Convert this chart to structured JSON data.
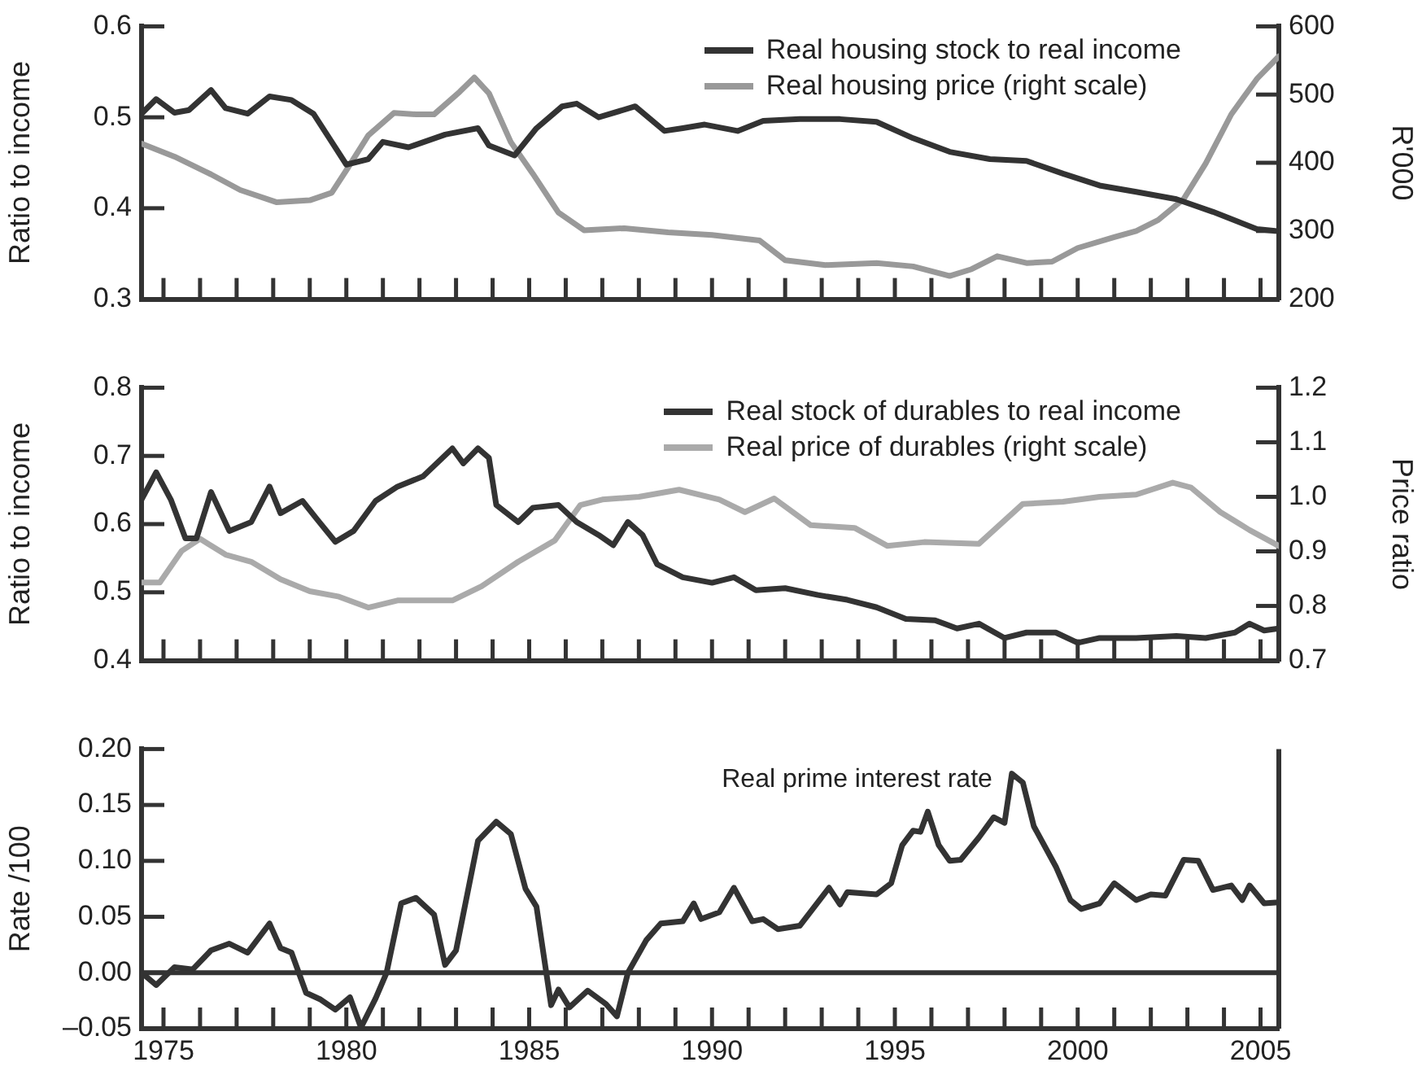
{
  "chart_data": [
    {
      "type": "line",
      "ylabel": "Ratio to income",
      "y2label": "R'000",
      "legend": "top right",
      "tick_labels": "y",
      "xlim": [
        1974.4,
        2005.5
      ],
      "xticks": [
        {
          "value": 1975,
          "label": null
        },
        {
          "value": 1976,
          "label": null
        },
        {
          "value": 1977,
          "label": null
        },
        {
          "value": 1978,
          "label": null
        },
        {
          "value": 1979,
          "label": null
        },
        {
          "value": 1980,
          "label": null
        },
        {
          "value": 1981,
          "label": null
        },
        {
          "value": 1982,
          "label": null
        },
        {
          "value": 1983,
          "label": null
        },
        {
          "value": 1984,
          "label": null
        },
        {
          "value": 1985,
          "label": null
        },
        {
          "value": 1986,
          "label": null
        },
        {
          "value": 1987,
          "label": null
        },
        {
          "value": 1988,
          "label": null
        },
        {
          "value": 1989,
          "label": null
        },
        {
          "value": 1990,
          "label": null
        },
        {
          "value": 1991,
          "label": null
        },
        {
          "value": 1992,
          "label": null
        },
        {
          "value": 1993,
          "label": null
        },
        {
          "value": 1994,
          "label": null
        },
        {
          "value": 1995,
          "label": null
        },
        {
          "value": 1996,
          "label": null
        },
        {
          "value": 1997,
          "label": null
        },
        {
          "value": 1998,
          "label": null
        },
        {
          "value": 1999,
          "label": null
        },
        {
          "value": 2000,
          "label": null
        },
        {
          "value": 2001,
          "label": null
        },
        {
          "value": 2002,
          "label": null
        },
        {
          "value": 2003,
          "label": null
        },
        {
          "value": 2004,
          "label": null
        },
        {
          "value": 2005,
          "label": null
        }
      ],
      "ylim": [
        0.3,
        0.6
      ],
      "yticks": [
        0.3,
        0.4,
        0.5,
        0.6
      ],
      "y2lim": [
        200,
        600
      ],
      "y2ticks": [
        200,
        300,
        400,
        500,
        600
      ],
      "series": [
        {
          "name": "Real housing stock to real income",
          "color": "#333333",
          "x": [
            1974.4,
            1974.8,
            1975.3,
            1975.7,
            1976.3,
            1976.7,
            1977.3,
            1977.9,
            1978.5,
            1979.1,
            1979.6,
            1980.0,
            1980.6,
            1981.0,
            1981.7,
            1982.7,
            1983.6,
            1983.9,
            1984.6,
            1985.2,
            1985.9,
            1986.3,
            1986.9,
            1987.9,
            1988.7,
            1989.2,
            1989.8,
            1990.7,
            1991.4,
            1992.4,
            1993.5,
            1994.5,
            1995.5,
            1996.5,
            1997.6,
            1998.6,
            1999.6,
            2000.6,
            2001.6,
            2002.7,
            2003.7,
            2004.9,
            2005.4
          ],
          "values": [
            0.504,
            0.52,
            0.505,
            0.508,
            0.53,
            0.51,
            0.504,
            0.523,
            0.519,
            0.504,
            0.473,
            0.448,
            0.454,
            0.473,
            0.467,
            0.481,
            0.488,
            0.469,
            0.458,
            0.488,
            0.512,
            0.515,
            0.5,
            0.512,
            0.485,
            0.488,
            0.492,
            0.485,
            0.496,
            0.498,
            0.498,
            0.495,
            0.477,
            0.462,
            0.454,
            0.452,
            0.438,
            0.425,
            0.418,
            0.41,
            0.396,
            0.377,
            0.375
          ]
        },
        {
          "name": "Real housing price (right scale)",
          "color": "#999999",
          "axis": "y2",
          "x": [
            1974.4,
            1975.3,
            1976.3,
            1977.1,
            1978.1,
            1979.0,
            1979.6,
            1980.0,
            1980.6,
            1981.3,
            1981.9,
            1982.4,
            1983.1,
            1983.5,
            1983.9,
            1984.5,
            1985.1,
            1985.8,
            1986.5,
            1987.6,
            1988.8,
            1990.0,
            1991.3,
            1992.0,
            1993.1,
            1994.5,
            1995.5,
            1996.5,
            1997.1,
            1997.8,
            1998.6,
            1999.3,
            2000.0,
            2001.0,
            2001.6,
            2002.2,
            2002.9,
            2003.5,
            2004.2,
            2004.9,
            2005.5
          ],
          "values": [
            428,
            409,
            383,
            360,
            342,
            345,
            356,
            389,
            440,
            473,
            471,
            471,
            504,
            525,
            502,
            430,
            384,
            327,
            301,
            304,
            298,
            294,
            286,
            257,
            250,
            253,
            248,
            234,
            244,
            263,
            253,
            255,
            275,
            291,
            300,
            316,
            347,
            399,
            471,
            523,
            556
          ]
        }
      ]
    },
    {
      "type": "line",
      "ylabel": "Ratio to income",
      "y2label": "Price ratio",
      "legend": "top right",
      "tick_labels": "y",
      "xlim": [
        1974.4,
        2005.5
      ],
      "xticks": [
        {
          "value": 1975,
          "label": null
        },
        {
          "value": 1976,
          "label": null
        },
        {
          "value": 1977,
          "label": null
        },
        {
          "value": 1978,
          "label": null
        },
        {
          "value": 1979,
          "label": null
        },
        {
          "value": 1980,
          "label": null
        },
        {
          "value": 1981,
          "label": null
        },
        {
          "value": 1982,
          "label": null
        },
        {
          "value": 1983,
          "label": null
        },
        {
          "value": 1984,
          "label": null
        },
        {
          "value": 1985,
          "label": null
        },
        {
          "value": 1986,
          "label": null
        },
        {
          "value": 1987,
          "label": null
        },
        {
          "value": 1988,
          "label": null
        },
        {
          "value": 1989,
          "label": null
        },
        {
          "value": 1990,
          "label": null
        },
        {
          "value": 1991,
          "label": null
        },
        {
          "value": 1992,
          "label": null
        },
        {
          "value": 1993,
          "label": null
        },
        {
          "value": 1994,
          "label": null
        },
        {
          "value": 1995,
          "label": null
        },
        {
          "value": 1996,
          "label": null
        },
        {
          "value": 1997,
          "label": null
        },
        {
          "value": 1998,
          "label": null
        },
        {
          "value": 1999,
          "label": null
        },
        {
          "value": 2000,
          "label": null
        },
        {
          "value": 2001,
          "label": null
        },
        {
          "value": 2002,
          "label": null
        },
        {
          "value": 2003,
          "label": null
        },
        {
          "value": 2004,
          "label": null
        },
        {
          "value": 2005,
          "label": null
        }
      ],
      "ylim": [
        0.4,
        0.8
      ],
      "yticks": [
        0.4,
        0.5,
        0.6,
        0.7,
        0.8
      ],
      "y2lim": [
        0.7,
        1.2
      ],
      "y2ticks": [
        0.7,
        0.8,
        0.9,
        {
          "value": 1.0,
          "label": "1.0"
        },
        1.1,
        1.2
      ],
      "series": [
        {
          "name": "Real stock of durables to real income",
          "color": "#333333",
          "x": [
            1974.4,
            1974.8,
            1975.2,
            1975.6,
            1975.9,
            1976.3,
            1976.8,
            1977.4,
            1977.9,
            1978.2,
            1978.8,
            1979.2,
            1979.7,
            1980.2,
            1980.8,
            1981.4,
            1982.1,
            1982.9,
            1983.2,
            1983.6,
            1983.9,
            1984.1,
            1984.7,
            1985.1,
            1985.8,
            1986.3,
            1986.9,
            1987.3,
            1987.7,
            1988.1,
            1988.5,
            1989.2,
            1990.0,
            1990.6,
            1991.2,
            1992.0,
            1992.9,
            1993.7,
            1994.5,
            1995.3,
            1996.1,
            1996.7,
            1997.3,
            1998.0,
            1998.6,
            1999.4,
            2000.0,
            2000.6,
            2001.6,
            2002.7,
            2003.5,
            2004.3,
            2004.7,
            2005.1,
            2005.5
          ],
          "values": [
            0.636,
            0.676,
            0.636,
            0.579,
            0.579,
            0.647,
            0.59,
            0.603,
            0.655,
            0.616,
            0.634,
            0.607,
            0.574,
            0.59,
            0.634,
            0.655,
            0.67,
            0.711,
            0.689,
            0.711,
            0.697,
            0.628,
            0.603,
            0.624,
            0.628,
            0.603,
            0.584,
            0.569,
            0.603,
            0.584,
            0.541,
            0.522,
            0.514,
            0.522,
            0.503,
            0.506,
            0.496,
            0.489,
            0.478,
            0.461,
            0.459,
            0.447,
            0.454,
            0.433,
            0.441,
            0.441,
            0.426,
            0.433,
            0.433,
            0.436,
            0.433,
            0.441,
            0.454,
            0.444,
            0.447
          ]
        },
        {
          "name": "Real price of durables (right scale)",
          "color": "#aaaaaa",
          "axis": "y2",
          "x": [
            1974.4,
            1974.9,
            1975.5,
            1976.0,
            1976.7,
            1977.4,
            1978.2,
            1979.0,
            1979.8,
            1980.6,
            1981.4,
            1982.9,
            1983.7,
            1984.7,
            1985.7,
            1986.4,
            1987.0,
            1988.0,
            1989.1,
            1990.2,
            1990.9,
            1991.7,
            1992.7,
            1993.9,
            1994.8,
            1995.8,
            1997.3,
            1998.5,
            1999.6,
            2000.6,
            2001.6,
            2002.6,
            2003.1,
            2003.9,
            2004.7,
            2005.5
          ],
          "values": [
            0.843,
            0.843,
            0.901,
            0.923,
            0.894,
            0.881,
            0.849,
            0.827,
            0.817,
            0.797,
            0.81,
            0.81,
            0.836,
            0.881,
            0.92,
            0.985,
            0.995,
            1.0,
            1.013,
            0.995,
            0.972,
            0.997,
            0.948,
            0.943,
            0.91,
            0.917,
            0.914,
            0.987,
            0.991,
            1.0,
            1.004,
            1.026,
            1.017,
            0.972,
            0.939,
            0.91
          ]
        }
      ]
    },
    {
      "type": "line",
      "ylabel": "Rate /100",
      "xlim": [
        1974.4,
        2005.5
      ],
      "xticks": [
        {
          "value": 1975,
          "label": "1975"
        },
        {
          "value": 1976,
          "label": null
        },
        {
          "value": 1977,
          "label": null
        },
        {
          "value": 1978,
          "label": null
        },
        {
          "value": 1979,
          "label": null
        },
        {
          "value": 1980,
          "label": "1980"
        },
        {
          "value": 1981,
          "label": null
        },
        {
          "value": 1982,
          "label": null
        },
        {
          "value": 1983,
          "label": null
        },
        {
          "value": 1984,
          "label": null
        },
        {
          "value": 1985,
          "label": "1985"
        },
        {
          "value": 1986,
          "label": null
        },
        {
          "value": 1987,
          "label": null
        },
        {
          "value": 1988,
          "label": null
        },
        {
          "value": 1989,
          "label": null
        },
        {
          "value": 1990,
          "label": "1990"
        },
        {
          "value": 1991,
          "label": null
        },
        {
          "value": 1992,
          "label": null
        },
        {
          "value": 1993,
          "label": null
        },
        {
          "value": 1994,
          "label": null
        },
        {
          "value": 1995,
          "label": "1995"
        },
        {
          "value": 1996,
          "label": null
        },
        {
          "value": 1997,
          "label": null
        },
        {
          "value": 1998,
          "label": null
        },
        {
          "value": 1999,
          "label": null
        },
        {
          "value": 2000,
          "label": "2000"
        },
        {
          "value": 2001,
          "label": null
        },
        {
          "value": 2002,
          "label": null
        },
        {
          "value": 2003,
          "label": null
        },
        {
          "value": 2004,
          "label": null
        },
        {
          "value": 2005,
          "label": "2005"
        }
      ],
      "ylim": [
        -0.05,
        0.2
      ],
      "yticks": [
        {
          "value": -0.05,
          "label": "–0.05"
        },
        {
          "value": 0,
          "label": "0.00"
        },
        {
          "value": 0.05,
          "label": "0.05"
        },
        {
          "value": 0.1,
          "label": "0.10"
        },
        {
          "value": 0.15,
          "label": "0.15"
        },
        {
          "value": 0.2,
          "label": "0.20"
        }
      ],
      "ref_lines": [
        {
          "axis": "y",
          "value": 0,
          "color": "#333333"
        }
      ],
      "series": [
        {
          "name": "Real prime interest rate",
          "color": "#333333",
          "x": [
            1974.4,
            1974.8,
            1975.3,
            1975.8,
            1976.3,
            1976.8,
            1977.3,
            1977.9,
            1978.2,
            1978.5,
            1978.9,
            1979.3,
            1979.7,
            1980.1,
            1980.4,
            1980.8,
            1981.1,
            1981.5,
            1981.9,
            1982.4,
            1982.7,
            1983.0,
            1983.6,
            1984.1,
            1984.5,
            1984.9,
            1985.2,
            1985.6,
            1985.8,
            1986.1,
            1986.6,
            1987.1,
            1987.4,
            1987.7,
            1988.2,
            1988.6,
            1989.2,
            1989.5,
            1989.7,
            1990.2,
            1990.6,
            1991.1,
            1991.4,
            1991.8,
            1992.4,
            1993.2,
            1993.5,
            1993.7,
            1994.5,
            1994.9,
            1995.2,
            1995.5,
            1995.7,
            1995.9,
            1996.2,
            1996.5,
            1996.8,
            1997.3,
            1997.7,
            1998.0,
            1998.2,
            1998.5,
            1998.8,
            1999.4,
            1999.8,
            2000.1,
            2000.6,
            2001.0,
            2001.6,
            2002.0,
            2002.4,
            2002.9,
            2003.3,
            2003.7,
            2004.2,
            2004.5,
            2004.7,
            2005.1,
            2005.5
          ],
          "values": [
            0,
            -0.011,
            0.005,
            0.003,
            0.02,
            0.026,
            0.018,
            0.044,
            0.022,
            0.018,
            -0.018,
            -0.024,
            -0.033,
            -0.022,
            -0.049,
            -0.023,
            0,
            0.062,
            0.067,
            0.052,
            0.007,
            0.02,
            0.118,
            0.135,
            0.124,
            0.075,
            0.059,
            -0.029,
            -0.015,
            -0.031,
            -0.016,
            -0.028,
            -0.039,
            0,
            0.029,
            0.044,
            0.046,
            0.062,
            0.048,
            0.054,
            0.076,
            0.046,
            0.048,
            0.039,
            0.042,
            0.076,
            0.061,
            0.072,
            0.07,
            0.08,
            0.114,
            0.127,
            0.126,
            0.144,
            0.114,
            0.1,
            0.101,
            0.121,
            0.139,
            0.134,
            0.178,
            0.17,
            0.131,
            0.095,
            0.065,
            0.057,
            0.062,
            0.08,
            0.065,
            0.07,
            0.069,
            0.101,
            0.1,
            0.074,
            0.078,
            0.065,
            0.078,
            0.062,
            0.063
          ]
        }
      ]
    }
  ]
}
